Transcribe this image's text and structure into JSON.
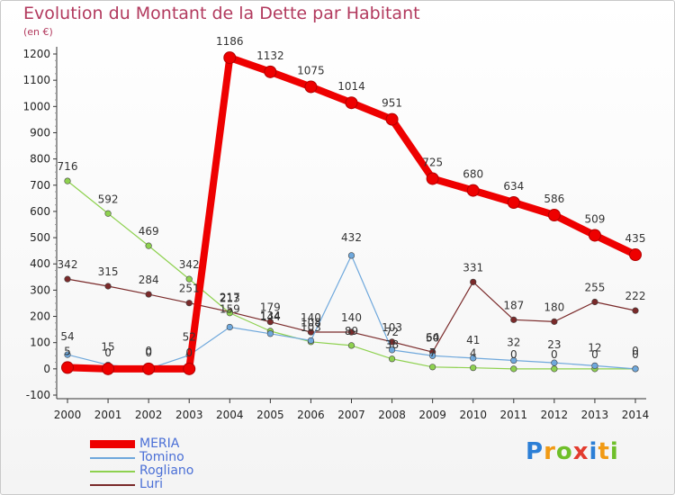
{
  "chart_data": {
    "type": "line",
    "title": "Evolution du Montant de la Dette par Habitant",
    "subtitle": "(en €)",
    "x": [
      "2000",
      "2001",
      "2002",
      "2003",
      "2004",
      "2005",
      "2006",
      "2007",
      "2008",
      "2009",
      "2010",
      "2011",
      "2012",
      "2013",
      "2014"
    ],
    "ylim": [
      -100,
      1200
    ],
    "yticks": [
      -100,
      0,
      100,
      200,
      300,
      400,
      500,
      600,
      700,
      800,
      900,
      1000,
      1100,
      1200
    ],
    "grid": false,
    "legend_position": "bottom-left",
    "series": [
      {
        "name": "MERIA",
        "color": "#ee0000",
        "values": [
          5,
          0,
          0,
          0,
          1186,
          1132,
          1075,
          1014,
          951,
          725,
          680,
          634,
          586,
          509,
          435
        ]
      },
      {
        "name": "Tomino",
        "color": "#6fa8dc",
        "values": [
          54,
          15,
          0,
          52,
          159,
          134,
          108,
          432,
          72,
          50,
          41,
          32,
          23,
          12,
          0
        ]
      },
      {
        "name": "Rogliano",
        "color": "#8ed14f",
        "values": [
          716,
          592,
          469,
          342,
          213,
          144,
          103,
          89,
          38,
          7,
          4,
          0,
          0,
          0,
          0
        ]
      },
      {
        "name": "Luri",
        "color": "#7a2a2a",
        "values": [
          342,
          315,
          284,
          251,
          217,
          179,
          140,
          140,
          103,
          64,
          331,
          187,
          180,
          255,
          222
        ]
      }
    ]
  },
  "legend": {
    "items": [
      "MERIA",
      "Tomino",
      "Rogliano",
      "Luri"
    ]
  },
  "brand": {
    "text": "Proxiti",
    "colors": [
      "#2c7fd6",
      "#f19a14",
      "#6fbf2a",
      "#e23b2e",
      "#2c7fd6",
      "#f19a14",
      "#6fbf2a"
    ]
  }
}
